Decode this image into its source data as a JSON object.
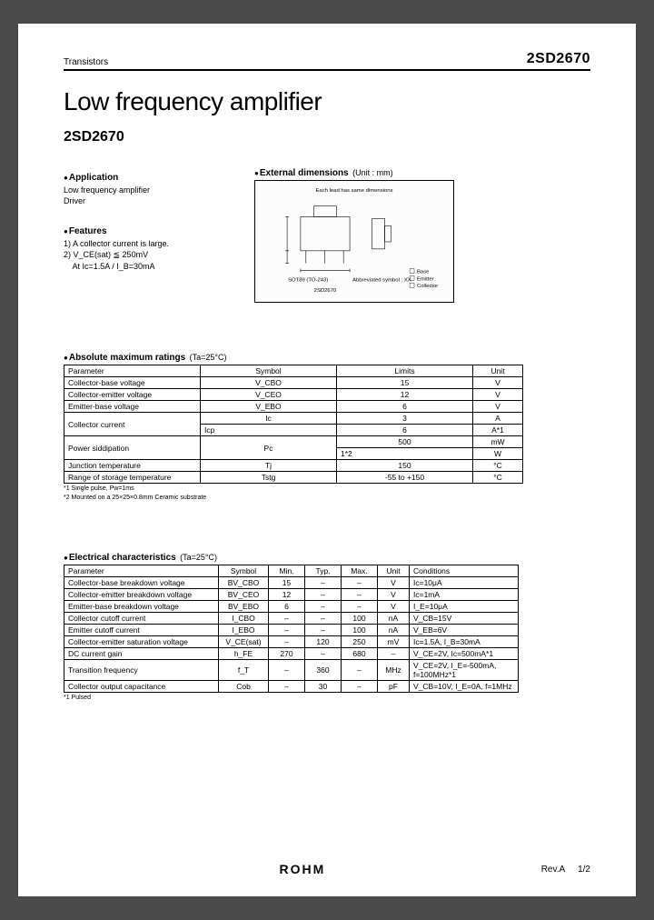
{
  "header": {
    "category": "Transistors",
    "part_no_top": "2SD2670"
  },
  "title": "Low frequency amplifier",
  "part_no": "2SD2670",
  "application": {
    "head": "Application",
    "lines": [
      "Low frequency amplifier",
      "Driver"
    ]
  },
  "features": {
    "head": "Features",
    "lines": [
      "1) A collector current is large.",
      "2) V_CE(sat) ≦ 250mV",
      "    At Ic=1.5A / I_B=30mA"
    ]
  },
  "dimensions": {
    "head": "External dimensions",
    "unit": "(Unit : mm)",
    "pkg_label": "SOT89 (TO-243)",
    "abbrev": "Abbreviated symbol : XX",
    "part": "2SD2670",
    "pins": "Base\nEmitter\nCollector"
  },
  "table1": {
    "head": "Absolute maximum ratings",
    "cond": "(Ta=25°C)",
    "columns": [
      "Parameter",
      "Symbol",
      "Limits",
      "Unit"
    ],
    "rows": [
      [
        "Collector-base voltage",
        "V_CBO",
        "15",
        "V"
      ],
      [
        "Collector-emitter voltage",
        "V_CEO",
        "12",
        "V"
      ],
      [
        "Emitter-base voltage",
        "V_EBO",
        "6",
        "V"
      ]
    ],
    "ic_row": {
      "param": "Collector current",
      "s1": "Ic",
      "l1": "3",
      "u1": "A",
      "s2": "Icp",
      "l2": "6",
      "u2": "A*1"
    },
    "pc_row": {
      "param": "Power siddipation",
      "sym": "Pc",
      "l1": "500",
      "u1": "mW",
      "l2": "1*2",
      "u2": "W"
    },
    "rows2": [
      [
        "Junction temperature",
        "Tj",
        "150",
        "°C"
      ],
      [
        "Range of storage temperature",
        "Tstg",
        "-55 to +150",
        "°C"
      ]
    ],
    "notes": [
      "*1 Single pulse, Pw=1ms",
      "*2 Mounted on a 25×25×0.8mm Ceramic substrate"
    ]
  },
  "table2": {
    "head": "Electrical characteristics",
    "cond": "(Ta=25°C)",
    "columns": [
      "Parameter",
      "Symbol",
      "Min.",
      "Typ.",
      "Max.",
      "Unit",
      "Conditions"
    ],
    "rows": [
      [
        "Collector-base breakdown voltage",
        "BV_CBO",
        "15",
        "–",
        "–",
        "V",
        "Ic=10μA"
      ],
      [
        "Collector-emitter breakdown voltage",
        "BV_CEO",
        "12",
        "–",
        "–",
        "V",
        "Ic=1mA"
      ],
      [
        "Emitter-base breakdown voltage",
        "BV_EBO",
        "6",
        "–",
        "–",
        "V",
        "I_E=10μA"
      ],
      [
        "Collector cutoff current",
        "I_CBO",
        "–",
        "–",
        "100",
        "nA",
        "V_CB=15V"
      ],
      [
        "Emitter cutoff current",
        "I_EBO",
        "–",
        "–",
        "100",
        "nA",
        "V_EB=6V"
      ],
      [
        "Collector-emitter saturation voltage",
        "V_CE(sat)",
        "–",
        "120",
        "250",
        "mV",
        "Ic=1.5A, I_B=30mA"
      ],
      [
        "DC current gain",
        "h_FE",
        "270",
        "–",
        "680",
        "–",
        "V_CE=2V, Ic=500mA*1"
      ],
      [
        "Transition frequency",
        "f_T",
        "–",
        "360",
        "–",
        "MHz",
        "V_CE=2V, I_E=-500mA, f=100MHz*1"
      ],
      [
        "Collector output capacitance",
        "Cob",
        "–",
        "30",
        "–",
        "pF",
        "V_CB=10V, I_E=0A, f=1MHz"
      ]
    ],
    "notes": [
      "*1 Pulsed"
    ]
  },
  "footer": {
    "logo": "ROHM",
    "rev": "Rev.A",
    "page": "1/2"
  }
}
